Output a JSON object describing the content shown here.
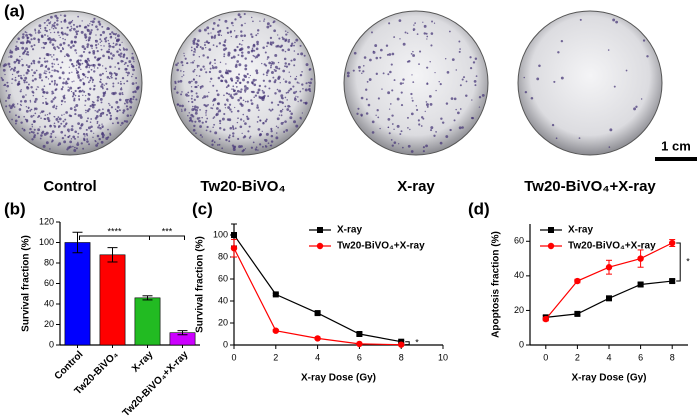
{
  "panel_a": {
    "label": "(a)",
    "images": [
      "Control",
      "Tw20-BiVO₄",
      "X-ray",
      "Tw20-BiVO₄+X-ray"
    ],
    "scale_bar": "1 cm"
  },
  "chart_data": [
    {
      "type": "bar",
      "panel_label": "(b)",
      "y_label": "Survival fraction (%)",
      "categories": [
        "Control",
        "Tw20-BiVO₄",
        "X-ray",
        "Tw20-BiVO₄+X-ray"
      ],
      "values": [
        100,
        88,
        46,
        12
      ],
      "errors": [
        10,
        7,
        2,
        2
      ],
      "colors": [
        "#0000ff",
        "#ff0000",
        "#22bb22",
        "#cc00ff"
      ],
      "ylim": [
        0,
        120
      ],
      "yticks": [
        0,
        20,
        40,
        60,
        80,
        100,
        120
      ],
      "significance": [
        "****",
        "***"
      ]
    },
    {
      "type": "line",
      "panel_label": "(c)",
      "x_label": "X-ray Dose (Gy)",
      "y_label": "Survival fraction (%)",
      "x": [
        0,
        2,
        4,
        6,
        8
      ],
      "series": [
        {
          "name": "X-ray",
          "color": "#000000",
          "marker": "square",
          "values": [
            100,
            46,
            29,
            10,
            3
          ],
          "errors": [
            10,
            1,
            1,
            1,
            1
          ]
        },
        {
          "name": "Tw20-BiVO₄+X-ray",
          "color": "#ff0000",
          "marker": "circle",
          "values": [
            88,
            13,
            6,
            1,
            0.3
          ],
          "errors": [
            8,
            1,
            1,
            0.5,
            0.2
          ]
        }
      ],
      "xlim": [
        0,
        10
      ],
      "xticks": [
        0,
        2,
        4,
        6,
        8,
        10
      ],
      "ylim": [
        0,
        110
      ],
      "yticks": [
        0,
        20,
        40,
        60,
        80,
        100
      ],
      "legend": "upper right",
      "significance": "*"
    },
    {
      "type": "line",
      "panel_label": "(d)",
      "x_label": "X-ray Dose (Gy)",
      "y_label": "Apoptosis fraction (%)",
      "x": [
        0,
        2,
        4,
        6,
        8
      ],
      "series": [
        {
          "name": "X-ray",
          "color": "#000000",
          "marker": "square",
          "values": [
            16,
            18,
            27,
            35,
            37
          ],
          "errors": [
            1,
            1,
            1,
            1,
            1
          ]
        },
        {
          "name": "Tw20-BiVO₄+X-ray",
          "color": "#ff0000",
          "marker": "circle",
          "values": [
            15,
            37,
            45,
            50,
            59
          ],
          "errors": [
            1,
            1,
            4,
            5,
            2
          ]
        }
      ],
      "xlim": [
        -1,
        9
      ],
      "xticks": [
        0,
        2,
        4,
        6,
        8
      ],
      "ylim": [
        0,
        70
      ],
      "yticks": [
        0,
        20,
        40,
        60
      ],
      "legend": "upper left",
      "significance": "*"
    }
  ]
}
